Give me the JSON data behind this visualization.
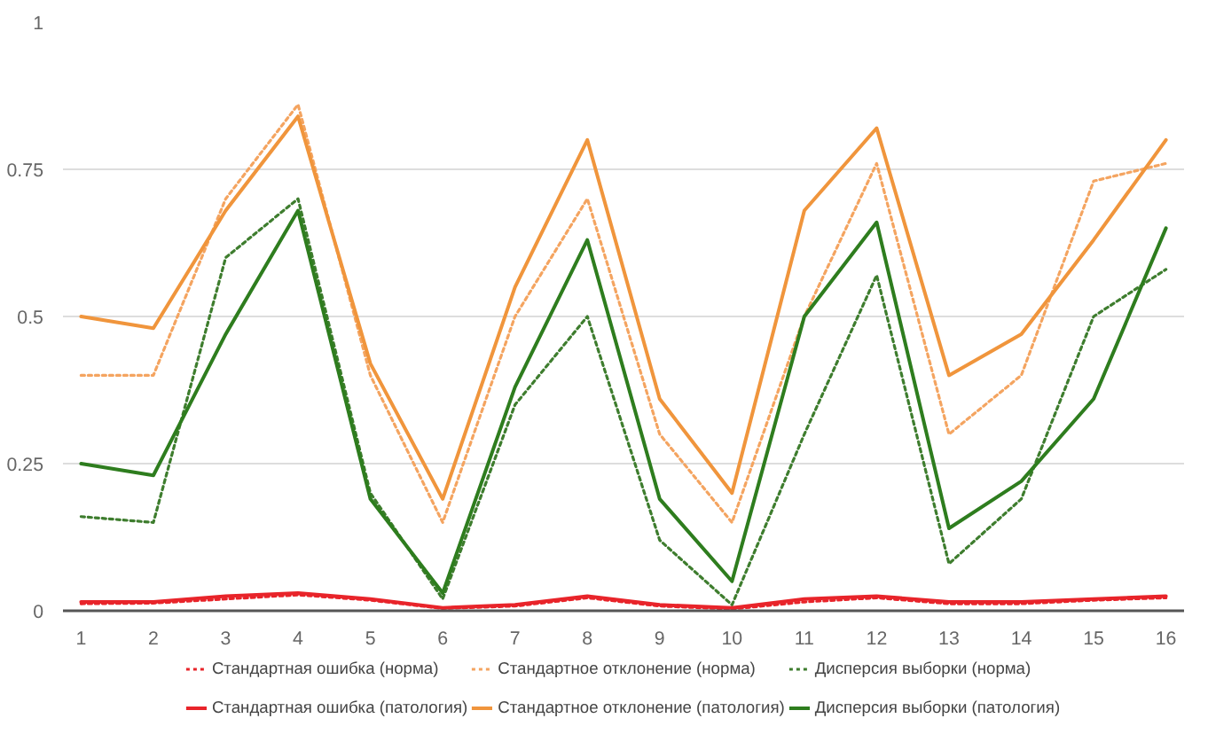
{
  "chart_data": {
    "type": "line",
    "x": [
      1,
      2,
      3,
      4,
      5,
      6,
      7,
      8,
      9,
      10,
      11,
      12,
      13,
      14,
      15,
      16
    ],
    "xlim": [
      0.75,
      16.25
    ],
    "xticks": [
      1,
      2,
      3,
      4,
      5,
      6,
      7,
      8,
      9,
      10,
      11,
      12,
      13,
      14,
      15,
      16
    ],
    "ylim": [
      0,
      1
    ],
    "yticks": [
      0,
      0.25,
      0.5,
      0.75,
      1
    ],
    "grid": "y",
    "legend": "bottom",
    "series": [
      {
        "name": "Стандартная ошибка (норма)",
        "color": "#e8242a",
        "line_style": "dotted",
        "values": [
          0.012,
          0.013,
          0.02,
          0.027,
          0.018,
          0.004,
          0.008,
          0.022,
          0.008,
          0.003,
          0.015,
          0.022,
          0.012,
          0.012,
          0.018,
          0.022
        ]
      },
      {
        "name": "Стандартное отклонение (норма)",
        "color": "#f4a460",
        "line_style": "dotted",
        "values": [
          0.4,
          0.4,
          0.7,
          0.86,
          0.4,
          0.15,
          0.5,
          0.7,
          0.3,
          0.15,
          0.5,
          0.76,
          0.3,
          0.4,
          0.73,
          0.76
        ]
      },
      {
        "name": "Дисперсия выборки (норма)",
        "color": "#3e7d2e",
        "line_style": "dotted",
        "values": [
          0.16,
          0.15,
          0.6,
          0.7,
          0.2,
          0.02,
          0.35,
          0.5,
          0.12,
          0.01,
          0.3,
          0.57,
          0.08,
          0.19,
          0.5,
          0.58
        ]
      },
      {
        "name": "Стандартная ошибка (патология)",
        "color": "#e8242a",
        "line_style": "solid",
        "values": [
          0.015,
          0.015,
          0.025,
          0.03,
          0.02,
          0.005,
          0.01,
          0.025,
          0.01,
          0.005,
          0.02,
          0.025,
          0.015,
          0.015,
          0.02,
          0.025
        ]
      },
      {
        "name": "Стандартное отклонение (патология)",
        "color": "#f0953c",
        "line_style": "solid",
        "values": [
          0.5,
          0.48,
          0.68,
          0.84,
          0.42,
          0.19,
          0.55,
          0.8,
          0.36,
          0.2,
          0.68,
          0.82,
          0.4,
          0.47,
          0.63,
          0.8
        ]
      },
      {
        "name": "Дисперсия выборки (патология)",
        "color": "#2e7d1e",
        "line_style": "solid",
        "values": [
          0.25,
          0.23,
          0.47,
          0.68,
          0.19,
          0.03,
          0.38,
          0.63,
          0.19,
          0.05,
          0.5,
          0.66,
          0.14,
          0.22,
          0.36,
          0.65
        ]
      }
    ]
  }
}
